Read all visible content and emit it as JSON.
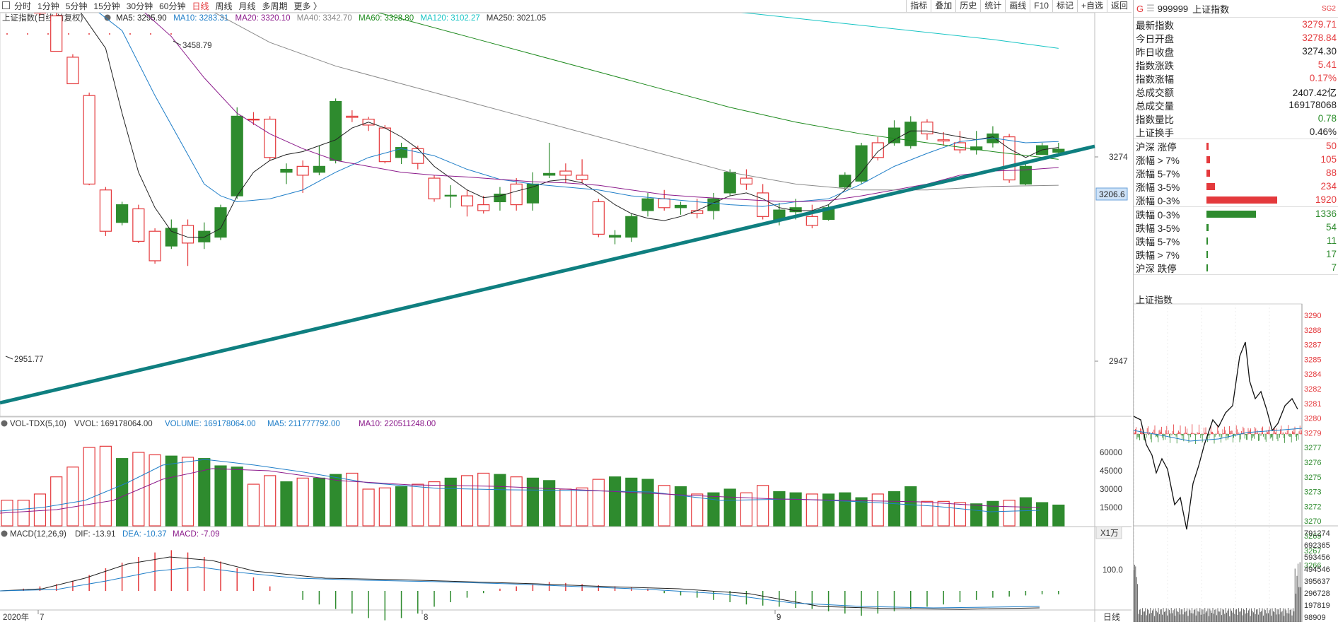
{
  "toolbar": {
    "periods": [
      "分时",
      "1分钟",
      "5分钟",
      "15分钟",
      "30分钟",
      "60分钟",
      "日线",
      "周线",
      "月线",
      "多周期",
      "更多 〉"
    ],
    "active_period": "日线",
    "right_tools": [
      "指标",
      "叠加",
      "历史",
      "统计",
      "画线",
      "F10",
      "标记",
      "+自选",
      "返回"
    ]
  },
  "main_panel": {
    "title": "上证指数(日线,前复权)",
    "ma": [
      {
        "label": "MA5: 3295.90",
        "color": "#222222"
      },
      {
        "label": "MA10: 3283.31",
        "color": "#1f7ec8"
      },
      {
        "label": "MA20: 3320.10",
        "color": "#8b1a8b"
      },
      {
        "label": "MA40: 3342.70",
        "color": "#888888"
      },
      {
        "label": "MA60: 3328.80",
        "color": "#1e8a1e"
      },
      {
        "label": "MA120: 3102.27",
        "color": "#17c4c4"
      },
      {
        "label": "MA250: 3021.05",
        "color": "#333333"
      }
    ],
    "high_label": "3458.79",
    "low_label": "2951.77",
    "y_labels": [
      "3274",
      "2947"
    ],
    "price_tag": "3206.6"
  },
  "vol_panel": {
    "title": "VOL-TDX(5,10)",
    "vvol": "VVOL: 169178064.00",
    "volume": "VOLUME: 169178064.00",
    "ma5": "MA5: 211777792.00",
    "ma10": "MA10: 220511248.00",
    "y_labels": [
      "60000",
      "45000",
      "30000",
      "15000"
    ],
    "unit": "X1万"
  },
  "macd_panel": {
    "title": "MACD(12,26,9)",
    "dif": "DIF: -13.91",
    "dea": "DEA: -10.37",
    "macd": "MACD: -7.09",
    "y_label": "100.0"
  },
  "x_axis": {
    "labels": [
      "2020年",
      "7",
      "8",
      "9"
    ],
    "mode": "日线"
  },
  "colors": {
    "up": "#e4393c",
    "down": "#2e8b2e",
    "trend": "#0f7f80"
  },
  "quote": {
    "flag": "G",
    "code": "999999",
    "name": "上证指数",
    "tag": "SG2",
    "rows": [
      {
        "label": "最新指数",
        "value": "3279.71",
        "color": "red"
      },
      {
        "label": "今日开盘",
        "value": "3278.84",
        "color": "red"
      },
      {
        "label": "昨日收盘",
        "value": "3274.30",
        "color": "blk"
      },
      {
        "label": "指数涨跌",
        "value": "5.41",
        "color": "red"
      },
      {
        "label": "指数涨幅",
        "value": "0.17%",
        "color": "red"
      },
      {
        "label": "总成交额",
        "value": "2407.42亿",
        "color": "blk"
      },
      {
        "label": "总成交量",
        "value": "169178068",
        "color": "blk"
      },
      {
        "label": "指数量比",
        "value": "0.78",
        "color": "green"
      },
      {
        "label": "上证换手",
        "value": "0.46%",
        "color": "blk"
      }
    ],
    "up_dist": [
      {
        "label": "沪深 涨停",
        "value": "50",
        "count": 50
      },
      {
        "label": "涨幅 > 7%",
        "value": "105",
        "count": 105
      },
      {
        "label": "涨幅 5-7%",
        "value": "88",
        "count": 88
      },
      {
        "label": "涨幅 3-5%",
        "value": "234",
        "count": 234
      },
      {
        "label": "涨幅 0-3%",
        "value": "1920",
        "count": 1920
      }
    ],
    "down_dist": [
      {
        "label": "跌幅 0-3%",
        "value": "1336",
        "count": 1336
      },
      {
        "label": "跌幅 3-5%",
        "value": "54",
        "count": 54
      },
      {
        "label": "跌幅 5-7%",
        "value": "11",
        "count": 11
      },
      {
        "label": "跌幅 > 7%",
        "value": "17",
        "count": 17
      },
      {
        "label": "沪深 跌停",
        "value": "7",
        "count": 7
      }
    ]
  },
  "intraday": {
    "title": "上证指数",
    "price_labels": [
      "3290",
      "3288",
      "3287",
      "3285",
      "3284",
      "3282",
      "3281",
      "3280",
      "3279",
      "3277",
      "3276",
      "3275",
      "3273",
      "3272",
      "3270",
      "3269",
      "3267",
      "3266"
    ],
    "vol_labels": [
      "791274",
      "692365",
      "593456",
      "494546",
      "395637",
      "296728",
      "197819",
      "98909"
    ]
  }
}
